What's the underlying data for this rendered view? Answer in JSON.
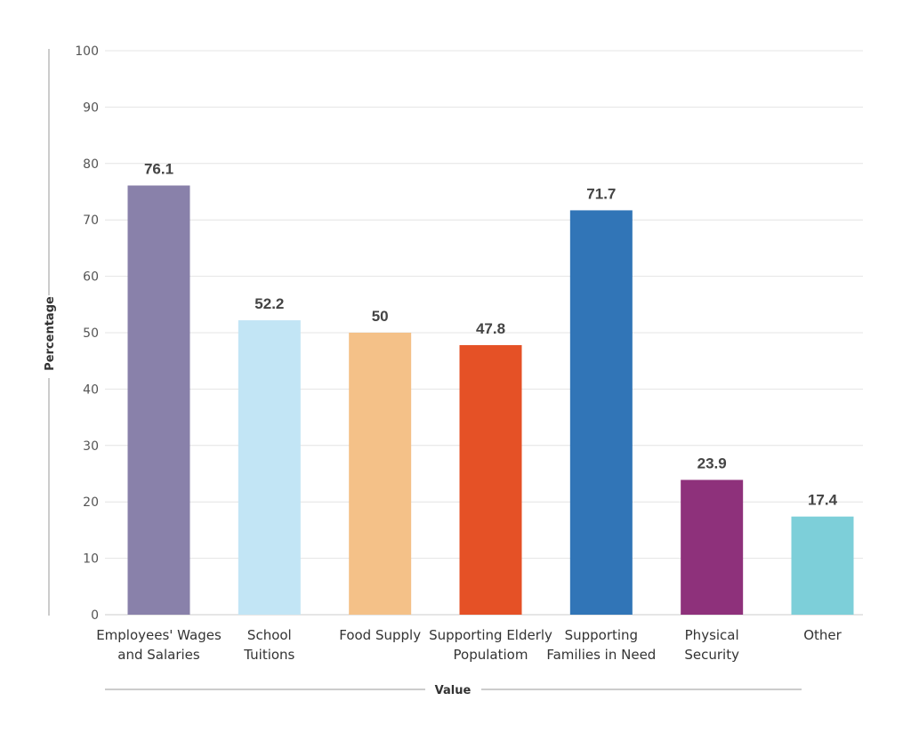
{
  "chart_data": {
    "type": "bar",
    "title": "",
    "xlabel": "Value",
    "ylabel": "Percentage",
    "ylim": [
      0,
      100
    ],
    "yticks": [
      0,
      10,
      20,
      30,
      40,
      50,
      60,
      70,
      80,
      90,
      100
    ],
    "grid": true,
    "legend": "none",
    "categories": [
      [
        "Employees' Wages",
        "and Salaries"
      ],
      [
        "School",
        "Tuitions"
      ],
      [
        "Food Supply"
      ],
      [
        "Supporting Elderly",
        "Populatiom"
      ],
      [
        "Supporting",
        "Families in Need"
      ],
      [
        "Physical",
        "Security"
      ],
      [
        "Other"
      ]
    ],
    "values": [
      76.1,
      52.2,
      50,
      47.8,
      71.7,
      23.9,
      17.4
    ],
    "value_labels": [
      "76.1",
      "52.2",
      "50",
      "47.8",
      "71.7",
      "23.9",
      "17.4"
    ],
    "colors": [
      "#8981aa",
      "#c2e5f5",
      "#f4c188",
      "#e55126",
      "#3175b7",
      "#8e317b",
      "#7dcfd9"
    ]
  }
}
